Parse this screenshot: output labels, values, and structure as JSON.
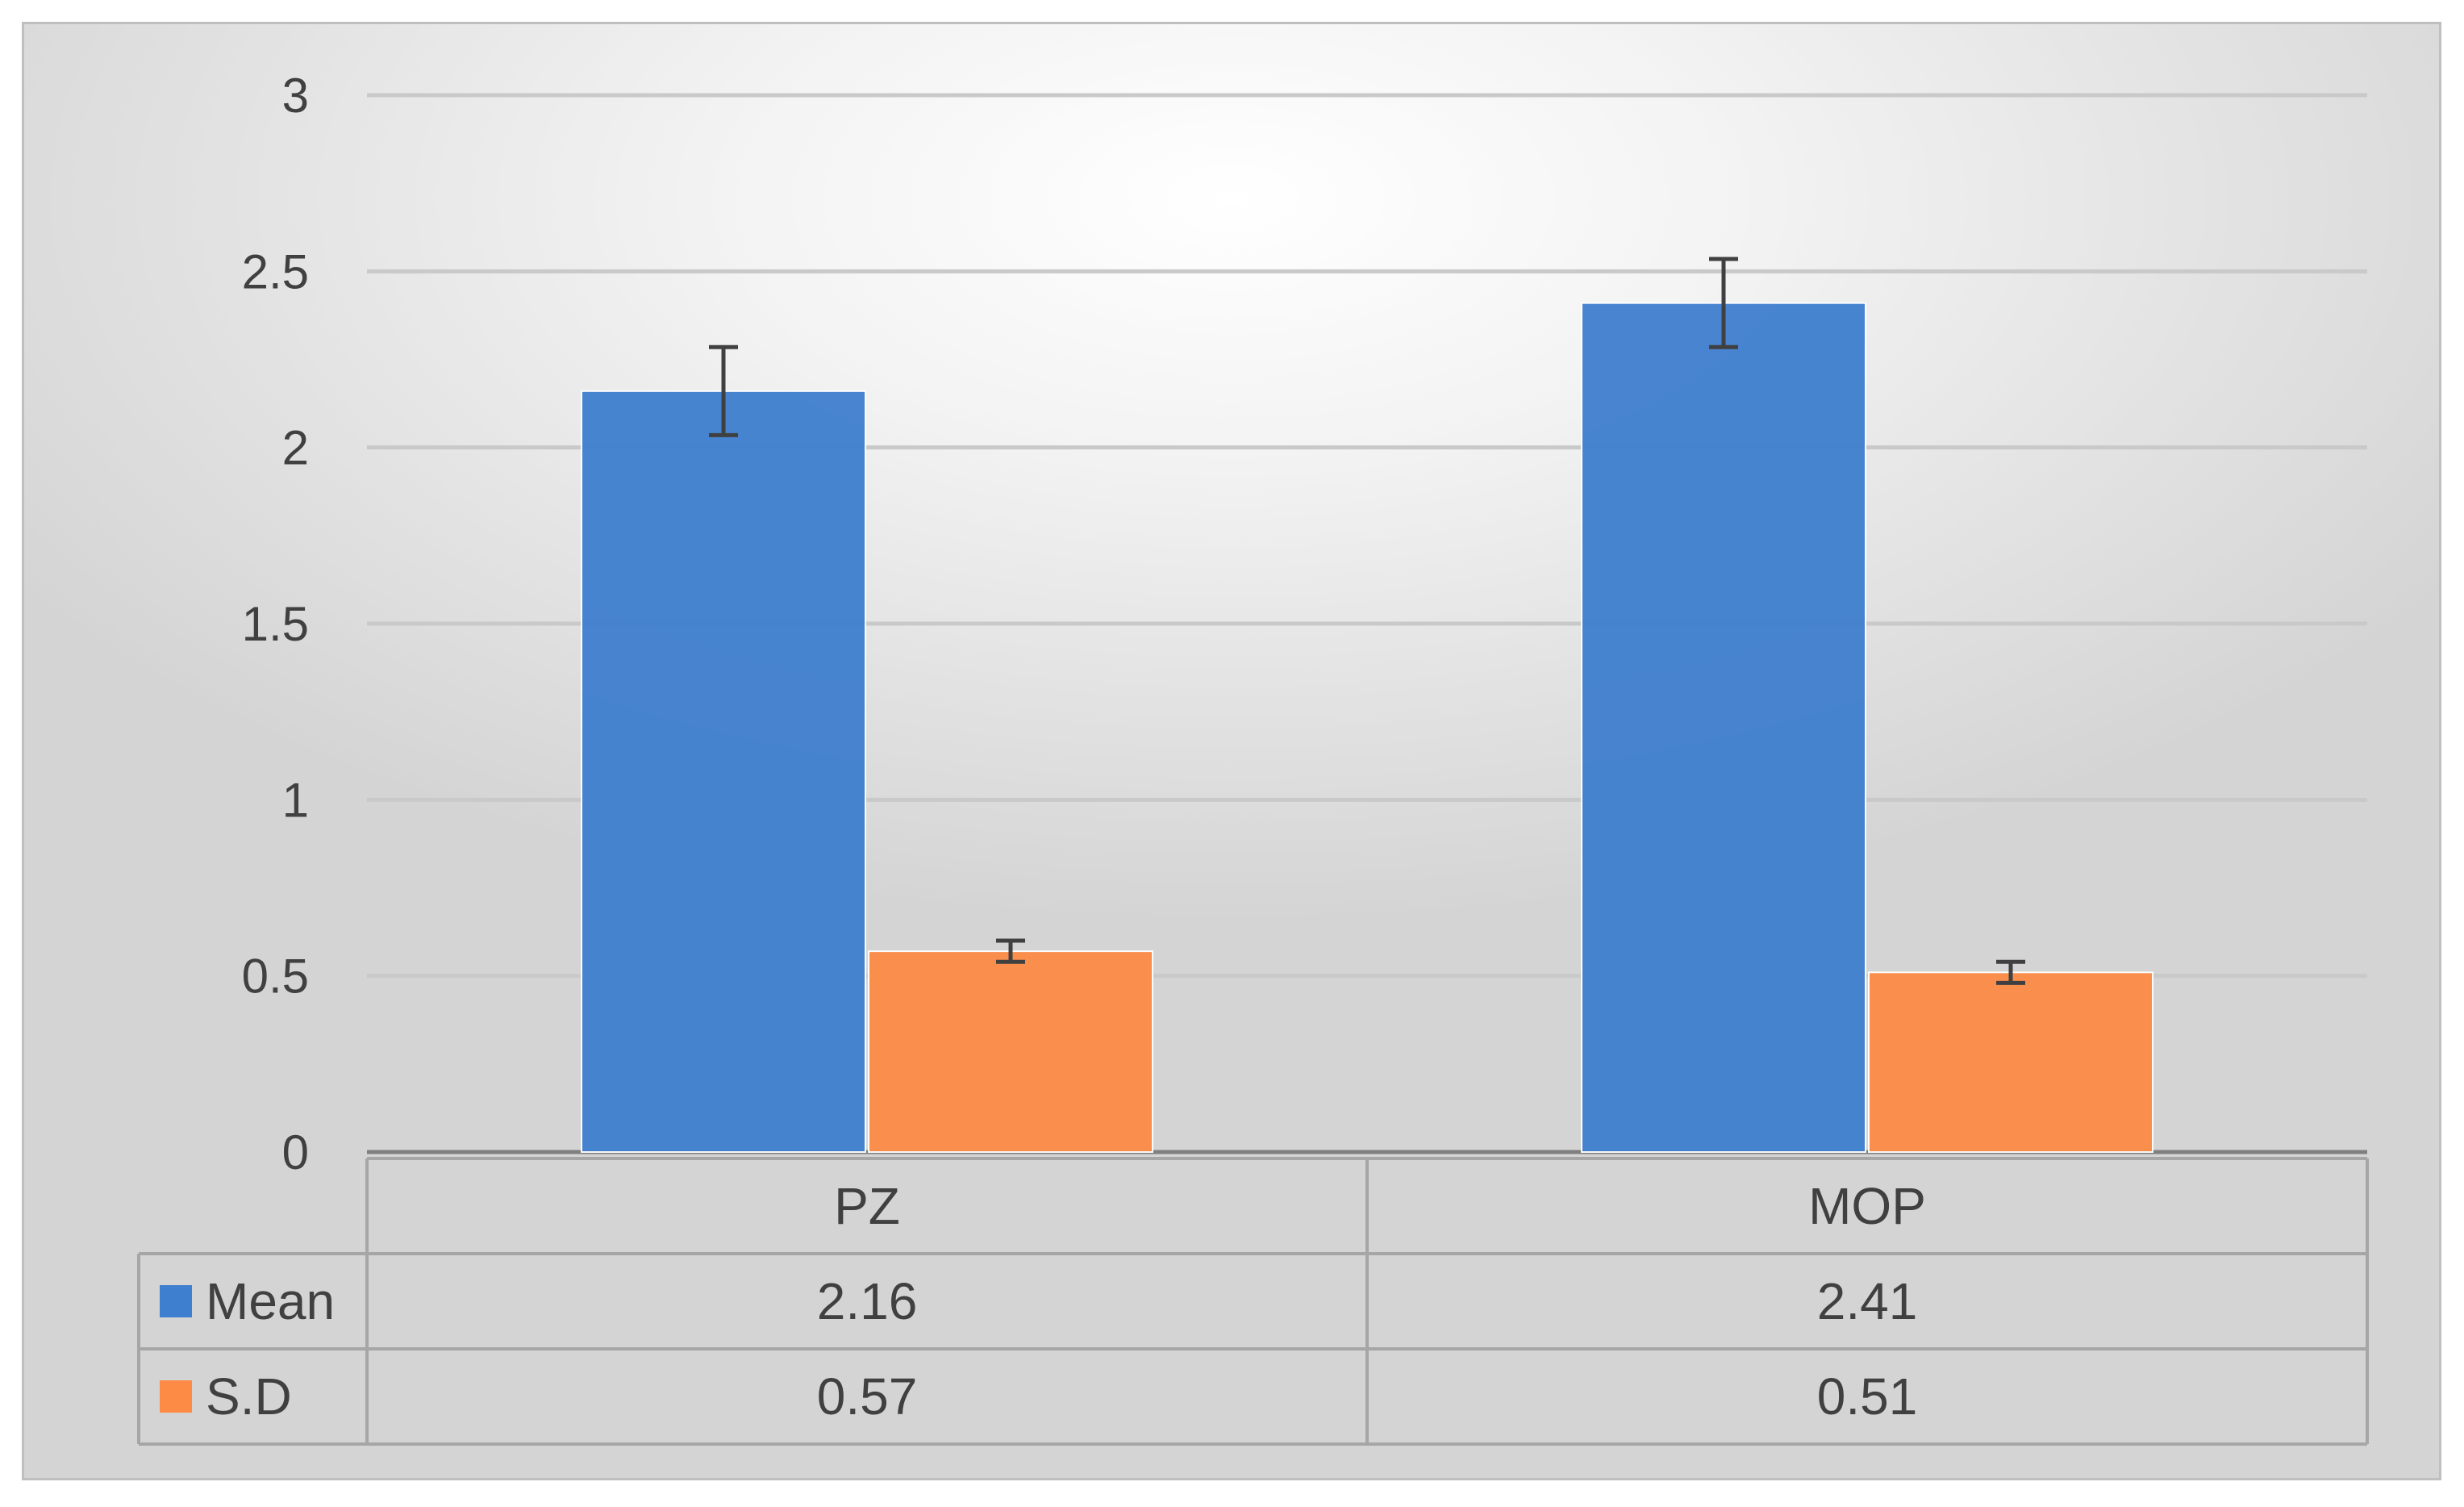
{
  "chart_data": {
    "type": "bar",
    "categories": [
      "PZ",
      "MOP"
    ],
    "series": [
      {
        "name": "Mean",
        "values": [
          2.16,
          2.41
        ],
        "errors": [
          0.125,
          0.125
        ],
        "color": "#3f7fcf"
      },
      {
        "name": "S.D",
        "values": [
          0.57,
          0.51
        ],
        "errors": [
          0.03,
          0.03
        ],
        "color": "#fd8b45"
      }
    ],
    "title": "",
    "xlabel": "",
    "ylabel": "",
    "ylim": [
      0,
      3
    ],
    "yticks": [
      "0",
      "0.5",
      "1",
      "1.5",
      "2",
      "2.5",
      "3"
    ],
    "grid": true,
    "legend": "data-table",
    "table": {
      "rows": [
        {
          "label": "Mean",
          "cells": [
            "2.16",
            "2.41"
          ]
        },
        {
          "label": "S.D",
          "cells": [
            "0.57",
            "0.51"
          ]
        }
      ]
    }
  }
}
